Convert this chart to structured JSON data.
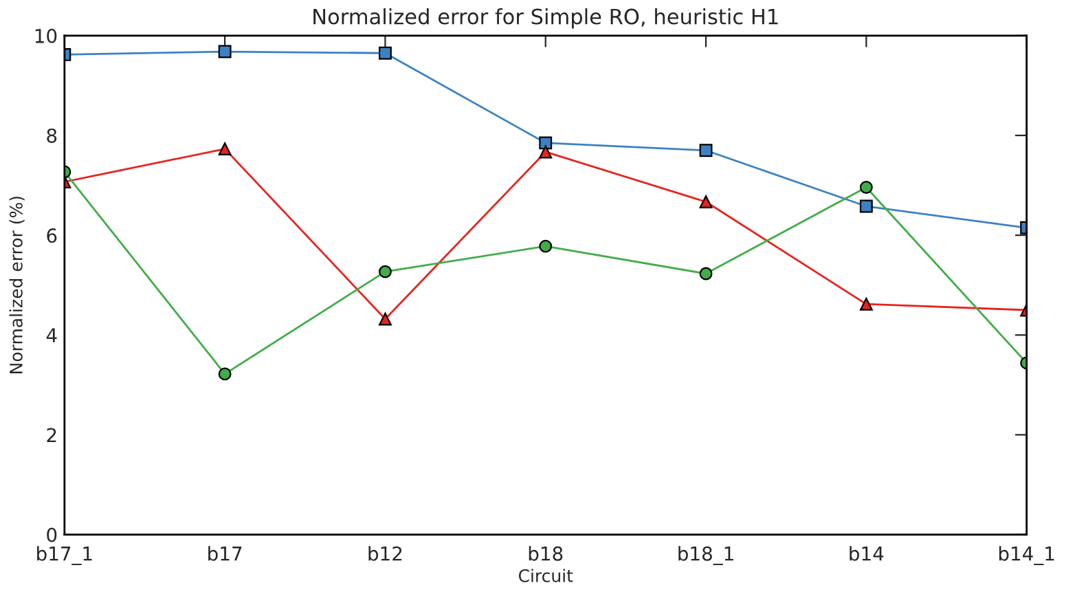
{
  "chart_data": {
    "type": "line",
    "title": "Normalized error for Simple RO, heuristic H1",
    "xlabel": "Circuit",
    "ylabel": "Normalized error (%)",
    "categories": [
      "b17_1",
      "b17",
      "b12",
      "b18",
      "b18_1",
      "b14",
      "b14_1"
    ],
    "series": [
      {
        "color": "#3b82c4",
        "marker": "square",
        "values": [
          9.62,
          9.68,
          9.65,
          7.85,
          7.7,
          6.58,
          6.15
        ]
      },
      {
        "color": "#e8231f",
        "marker": "triangle",
        "values": [
          7.07,
          7.73,
          4.32,
          7.67,
          6.67,
          4.62,
          4.5
        ]
      },
      {
        "color": "#41ad48",
        "marker": "circle",
        "values": [
          7.27,
          3.22,
          5.27,
          5.78,
          5.23,
          6.96,
          3.44
        ]
      }
    ],
    "ylim": [
      0,
      10
    ],
    "yticks": [
      0,
      2,
      4,
      6,
      8,
      10
    ],
    "grid": false,
    "line_style": "solid"
  }
}
